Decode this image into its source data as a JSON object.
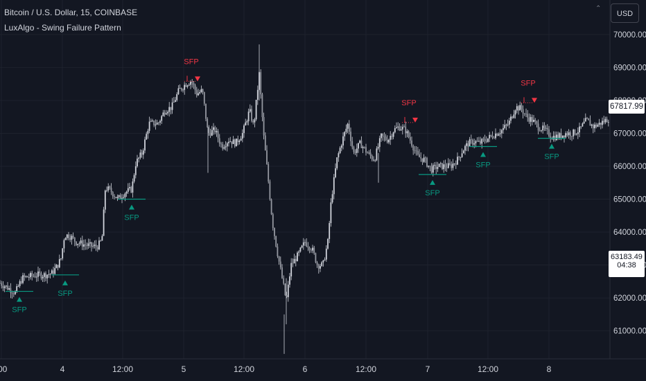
{
  "header": {
    "title": "Bitcoin / U.S. Dollar, 15, COINBASE",
    "indicator": "LuxAlgo - Swing Failure Pattern"
  },
  "currency_button": "USD",
  "price_tags": {
    "last_price": "67817.99",
    "crosshair_price": "63183.49",
    "countdown": "04:38"
  },
  "colors": {
    "background": "#131722",
    "candle": "#d1d4dc",
    "bearish_sfp": "#f23645",
    "bullish_sfp": "#089981",
    "axis_text": "#d1d4dc",
    "grid": "#1e222d"
  },
  "chart_data": {
    "type": "candlestick",
    "symbol": "Bitcoin / U.S. Dollar",
    "timeframe": "15",
    "exchange": "COINBASE",
    "y_axis": {
      "ticks": [
        61000,
        62000,
        63000,
        64000,
        65000,
        66000,
        67000,
        68000,
        69000,
        70000
      ],
      "tick_labels": [
        "61000.00",
        "62000.00",
        "63000.00",
        "64000.00",
        "65000.00",
        "66000.00",
        "67000.00",
        "68000.00",
        "69000.00",
        "70000.00"
      ],
      "range": [
        60150,
        71050
      ]
    },
    "x_axis": {
      "range": [
        0,
        880
      ],
      "tick_positions": [
        2,
        90,
        177,
        265,
        352,
        440,
        528,
        617,
        704,
        792
      ],
      "tick_labels": [
        ":00",
        "4",
        "12:00",
        "5",
        "12:00",
        "6",
        "12:00",
        "7",
        "12:00",
        "8"
      ]
    },
    "price_path": [
      [
        0,
        62450
      ],
      [
        12,
        62300
      ],
      [
        22,
        62150
      ],
      [
        32,
        62600
      ],
      [
        42,
        62650
      ],
      [
        55,
        62700
      ],
      [
        65,
        62700
      ],
      [
        75,
        62750
      ],
      [
        82,
        62950
      ],
      [
        88,
        63200
      ],
      [
        93,
        63900
      ],
      [
        100,
        63900
      ],
      [
        110,
        63700
      ],
      [
        125,
        63600
      ],
      [
        140,
        63550
      ],
      [
        147,
        63750
      ],
      [
        152,
        65350
      ],
      [
        160,
        65250
      ],
      [
        170,
        65000
      ],
      [
        180,
        65200
      ],
      [
        190,
        65300
      ],
      [
        196,
        66100
      ],
      [
        205,
        66400
      ],
      [
        215,
        67300
      ],
      [
        228,
        67300
      ],
      [
        238,
        67700
      ],
      [
        248,
        67800
      ],
      [
        258,
        68300
      ],
      [
        268,
        68500
      ],
      [
        276,
        68600
      ],
      [
        284,
        68200
      ],
      [
        292,
        68300
      ],
      [
        300,
        67000
      ],
      [
        310,
        67100
      ],
      [
        320,
        66600
      ],
      [
        330,
        66800
      ],
      [
        340,
        66700
      ],
      [
        350,
        67000
      ],
      [
        360,
        67700
      ],
      [
        366,
        67200
      ],
      [
        374,
        68800
      ],
      [
        380,
        67000
      ],
      [
        386,
        65800
      ],
      [
        393,
        64300
      ],
      [
        400,
        63400
      ],
      [
        407,
        62600
      ],
      [
        413,
        61900
      ],
      [
        420,
        63000
      ],
      [
        430,
        63300
      ],
      [
        440,
        63700
      ],
      [
        450,
        63500
      ],
      [
        458,
        63000
      ],
      [
        466,
        63000
      ],
      [
        473,
        63700
      ],
      [
        478,
        65000
      ],
      [
        486,
        66200
      ],
      [
        494,
        66800
      ],
      [
        502,
        67300
      ],
      [
        510,
        66400
      ],
      [
        520,
        66700
      ],
      [
        530,
        66400
      ],
      [
        540,
        66200
      ],
      [
        550,
        66900
      ],
      [
        560,
        66800
      ],
      [
        568,
        67100
      ],
      [
        576,
        67200
      ],
      [
        585,
        67100
      ],
      [
        594,
        66700
      ],
      [
        602,
        66300
      ],
      [
        612,
        66200
      ],
      [
        622,
        65900
      ],
      [
        632,
        66000
      ],
      [
        642,
        66000
      ],
      [
        650,
        66000
      ],
      [
        660,
        66200
      ],
      [
        668,
        66500
      ],
      [
        676,
        66700
      ],
      [
        684,
        66750
      ],
      [
        692,
        66700
      ],
      [
        700,
        66800
      ],
      [
        708,
        66900
      ],
      [
        716,
        67000
      ],
      [
        724,
        67100
      ],
      [
        734,
        67300
      ],
      [
        744,
        67800
      ],
      [
        752,
        67750
      ],
      [
        760,
        67500
      ],
      [
        768,
        67400
      ],
      [
        776,
        67200
      ],
      [
        786,
        67100
      ],
      [
        796,
        66900
      ],
      [
        806,
        66900
      ],
      [
        816,
        67000
      ],
      [
        826,
        67000
      ],
      [
        836,
        67100
      ],
      [
        846,
        67400
      ],
      [
        856,
        67200
      ],
      [
        866,
        67300
      ],
      [
        878,
        67450
      ]
    ],
    "bearish_sfp": [
      {
        "label": "SFP",
        "x": 276,
        "price": 68600
      },
      {
        "label": "SFP",
        "x": 590,
        "price": 67350
      },
      {
        "label": "SFP",
        "x": 762,
        "price": 67950
      }
    ],
    "bullish_sfp": [
      {
        "label": "SFP",
        "x": 28,
        "price": 62200
      },
      {
        "label": "SFP",
        "x": 94,
        "price": 62700
      },
      {
        "label": "SFP",
        "x": 190,
        "price": 65000
      },
      {
        "label": "SFP",
        "x": 624,
        "price": 65750
      },
      {
        "label": "SFP",
        "x": 697,
        "price": 66600
      },
      {
        "label": "SFP",
        "x": 796,
        "price": 66850
      }
    ],
    "last_price": 67817.99,
    "crosshair_price": 63183.49
  }
}
